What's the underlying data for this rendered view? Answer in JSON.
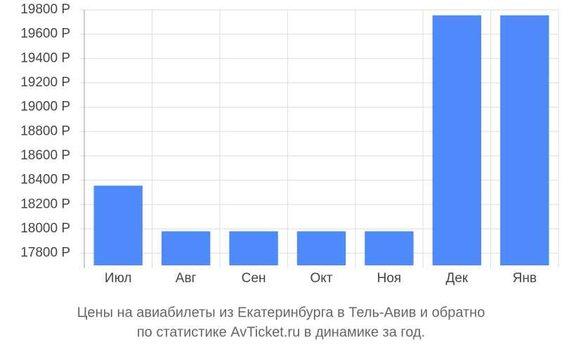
{
  "chart_data": {
    "type": "bar",
    "caption": [
      "Цены на авиабилеты из Екатеринбурга в Тель-Авив и обратно",
      "по статистике AvTicket.ru в динамике за год."
    ],
    "categories": [
      "Июл",
      "Авг",
      "Сен",
      "Окт",
      "Ноя",
      "Дек",
      "Янв"
    ],
    "values": [
      18355,
      17980,
      17980,
      17980,
      17980,
      19755,
      19755
    ],
    "color": "#4e8af9",
    "ylim": [
      17700,
      19800
    ],
    "yticks": [
      {
        "value": 17800,
        "label": "17800 Р"
      },
      {
        "value": 18000,
        "label": "18000 Р"
      },
      {
        "value": 18200,
        "label": "18200 Р"
      },
      {
        "value": 18400,
        "label": "18400 Р"
      },
      {
        "value": 18600,
        "label": "18600 Р"
      },
      {
        "value": 18800,
        "label": "18800 Р"
      },
      {
        "value": 19000,
        "label": "19000 Р"
      },
      {
        "value": 19200,
        "label": "19200 Р"
      },
      {
        "value": 19400,
        "label": "19400 Р"
      },
      {
        "value": 19600,
        "label": "19600 Р"
      },
      {
        "value": 19800,
        "label": "19800 Р"
      }
    ],
    "grid": true
  }
}
